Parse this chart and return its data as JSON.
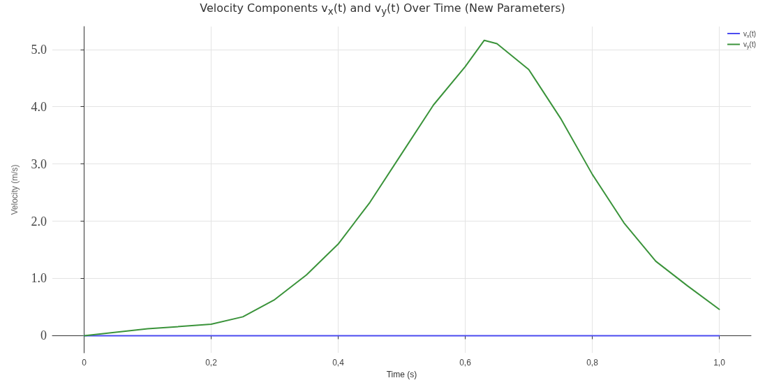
{
  "chart_data": {
    "type": "line",
    "title": "Velocity Components v$_{x}$(t) and v$_{y}$(t) Over Time (New Parameters)",
    "xlabel": "Time (s)",
    "ylabel": "Velocity (m/s)",
    "x": [
      0,
      0.1,
      0.2,
      0.25,
      0.3,
      0.35,
      0.4,
      0.45,
      0.5,
      0.55,
      0.6,
      0.63,
      0.65,
      0.7,
      0.75,
      0.8,
      0.85,
      0.9,
      0.95,
      1.0
    ],
    "series": [
      {
        "name": "v$_{x}$(t)",
        "color": "#4b4bf0",
        "values": [
          0,
          0,
          0,
          0,
          0,
          0,
          0,
          0,
          0,
          0,
          0,
          0,
          0,
          0,
          0,
          0,
          0,
          0,
          0,
          0
        ]
      },
      {
        "name": "v$_{y}$(t)",
        "color": "#3a933a",
        "values": [
          0,
          0.12,
          0.2,
          0.33,
          0.63,
          1.06,
          1.6,
          2.33,
          3.18,
          4.03,
          4.7,
          5.16,
          5.1,
          4.65,
          3.8,
          2.82,
          1.97,
          1.3,
          0.87,
          0.46
        ]
      }
    ],
    "xlim": [
      -0.05,
      1.05
    ],
    "xticks": [
      0,
      {
        "value": 0.2,
        "label": "0,2"
      },
      {
        "value": 0.4,
        "label": "0,4"
      },
      {
        "value": 0.6,
        "label": "0,6"
      },
      {
        "value": 0.8,
        "label": "0,8"
      },
      {
        "value": 1.0,
        "label": "1,0"
      }
    ],
    "ylim": [
      -0.3,
      5.4
    ],
    "yticks": [
      0,
      {
        "value": 1,
        "label": "1.0"
      },
      {
        "value": 2,
        "label": "2.0"
      },
      {
        "value": 3,
        "label": "3.0"
      },
      {
        "value": 4,
        "label": "4.0"
      },
      {
        "value": 5,
        "label": "5.0"
      }
    ],
    "grid": true,
    "legend": "top right",
    "marker": "none",
    "line_style": "solid"
  }
}
